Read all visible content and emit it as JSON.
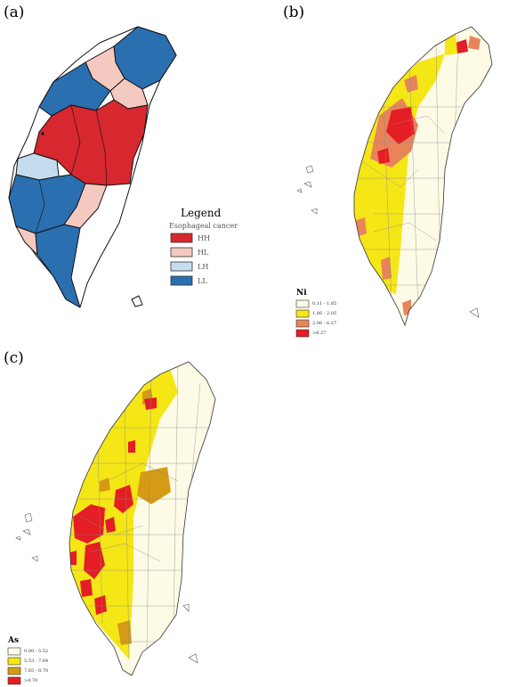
{
  "panels": {
    "a": {
      "label": "(a)",
      "legend_title": "Legend",
      "legend_subtitle": "Esophageal cancer",
      "classes": [
        {
          "label": "HH",
          "color": "#d7272f"
        },
        {
          "label": "HL",
          "color": "#f4c9bf"
        },
        {
          "label": "LH",
          "color": "#c5dcee"
        },
        {
          "label": "LL",
          "color": "#2a6fb0"
        }
      ]
    },
    "b": {
      "label": "(b)",
      "legend_title": "Ni",
      "classes": [
        {
          "label": "0.11 - 1.85",
          "color": "#fdfbe6"
        },
        {
          "label": "1.86 - 2.05",
          "color": "#f5e616"
        },
        {
          "label": "2.06 - 6.27",
          "color": "#e8845a"
        },
        {
          "label": ">6.27",
          "color": "#e51d24"
        }
      ]
    },
    "c": {
      "label": "(c)",
      "legend_title": "As",
      "classes": [
        {
          "label": "0.00 - 5.52",
          "color": "#fdfbe6"
        },
        {
          "label": "5.53 - 7.84",
          "color": "#f5e616"
        },
        {
          "label": "7.85 - 8.70",
          "color": "#d59b14"
        },
        {
          "label": ">8.70",
          "color": "#e51d24"
        }
      ]
    }
  }
}
